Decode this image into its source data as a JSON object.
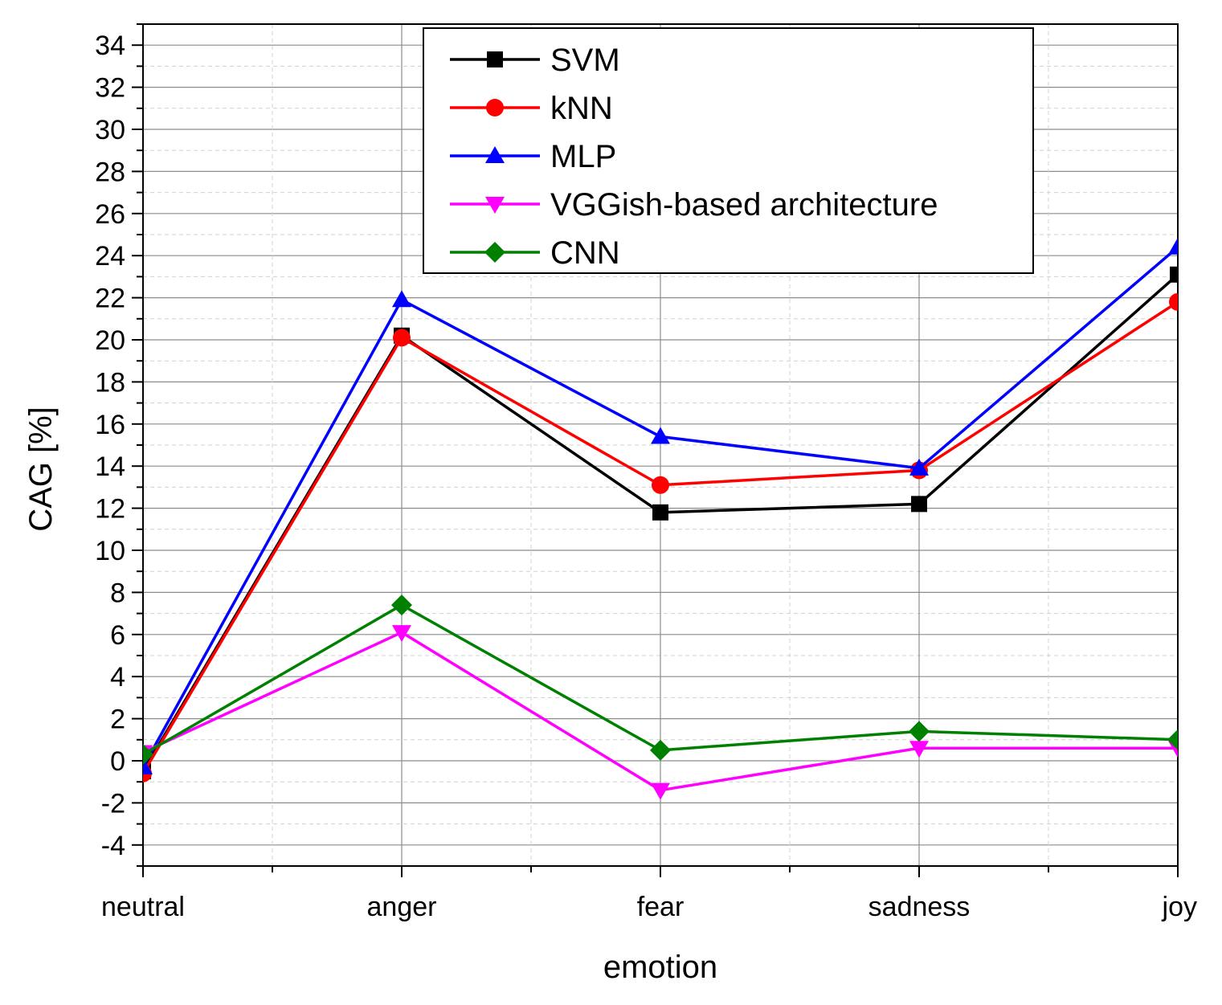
{
  "chart_data": {
    "type": "line",
    "title": "",
    "xlabel": "emotion",
    "ylabel": "CAG [%]",
    "categories": [
      "neutral",
      "anger",
      "fear",
      "sadness",
      "joy"
    ],
    "ylim": [
      -5,
      35
    ],
    "y_ticks": [
      -4,
      -2,
      0,
      2,
      4,
      6,
      8,
      10,
      12,
      14,
      16,
      18,
      20,
      22,
      24,
      26,
      28,
      30,
      32,
      34
    ],
    "grid": true,
    "legend_position": "top",
    "series": [
      {
        "name": "SVM",
        "color": "#000000",
        "marker": "square",
        "values": [
          -0.5,
          20.2,
          11.8,
          12.2,
          23.1
        ]
      },
      {
        "name": "kNN",
        "color": "#ff0000",
        "marker": "circle",
        "values": [
          -0.6,
          20.1,
          13.1,
          13.8,
          21.8
        ]
      },
      {
        "name": "MLP",
        "color": "#0000ff",
        "marker": "triangle-up",
        "values": [
          -0.3,
          21.9,
          15.4,
          13.9,
          24.4
        ]
      },
      {
        "name": "VGGish-based architecture",
        "color": "#ff00ff",
        "marker": "triangle-down",
        "values": [
          0.4,
          6.1,
          -1.4,
          0.6,
          0.6
        ]
      },
      {
        "name": "CNN",
        "color": "#008000",
        "marker": "diamond",
        "values": [
          0.3,
          7.4,
          0.5,
          1.4,
          1.0
        ]
      }
    ]
  }
}
